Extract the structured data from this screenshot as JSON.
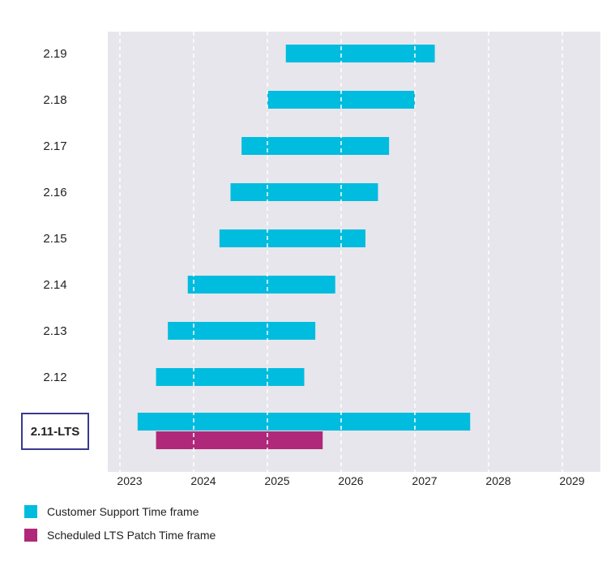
{
  "chart_data": {
    "type": "gantt",
    "x_axis": {
      "ticks": [
        "2023",
        "2024",
        "2025",
        "2026",
        "2027",
        "2028",
        "2029"
      ],
      "range": [
        2022.84,
        2029.5
      ],
      "grid": "dashed vertical at each year"
    },
    "rows": [
      {
        "label": "2.19",
        "highlight": false
      },
      {
        "label": "2.18",
        "highlight": false
      },
      {
        "label": "2.17",
        "highlight": false
      },
      {
        "label": "2.16",
        "highlight": false
      },
      {
        "label": "2.15",
        "highlight": false
      },
      {
        "label": "2.14",
        "highlight": false
      },
      {
        "label": "2.13",
        "highlight": false
      },
      {
        "label": "2.12",
        "highlight": false
      },
      {
        "label": "2.11-LTS",
        "highlight": true
      }
    ],
    "series": [
      {
        "name": "Customer Support Time frame",
        "color": "#00BCDF",
        "bars": [
          {
            "row": "2.19",
            "start": 2025.25,
            "end": 2027.27
          },
          {
            "row": "2.18",
            "start": 2025.0,
            "end": 2027.0
          },
          {
            "row": "2.17",
            "start": 2024.65,
            "end": 2026.65
          },
          {
            "row": "2.16",
            "start": 2024.5,
            "end": 2026.5
          },
          {
            "row": "2.15",
            "start": 2024.35,
            "end": 2026.33
          },
          {
            "row": "2.14",
            "start": 2023.92,
            "end": 2025.92
          },
          {
            "row": "2.13",
            "start": 2023.65,
            "end": 2025.65
          },
          {
            "row": "2.12",
            "start": 2023.49,
            "end": 2025.5
          },
          {
            "row": "2.11-LTS",
            "start": 2023.24,
            "end": 2027.75
          }
        ]
      },
      {
        "name": "Scheduled LTS Patch Time frame",
        "color": "#B0287A",
        "bars": [
          {
            "row": "2.11-LTS",
            "start": 2023.49,
            "end": 2025.75
          }
        ]
      }
    ],
    "plot_background": "#E6E6EC",
    "highlight_box_color": "#3A3A8C"
  }
}
